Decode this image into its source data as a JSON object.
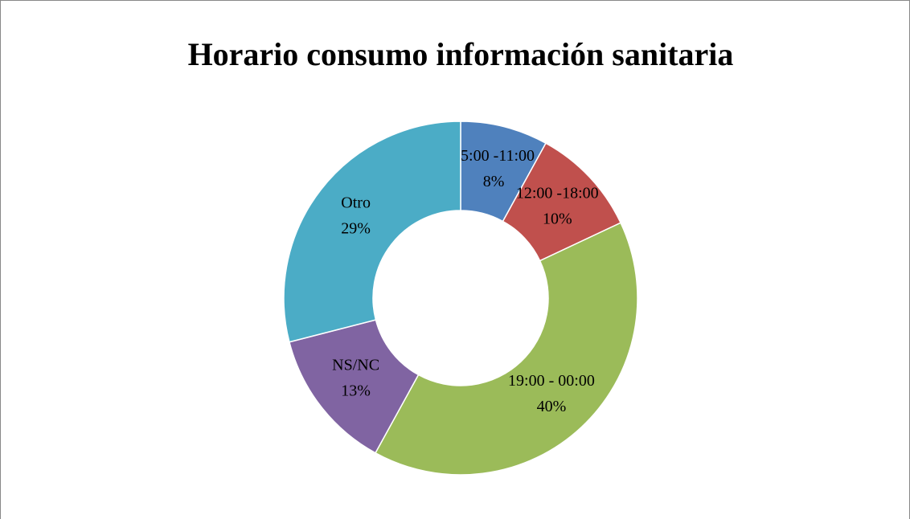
{
  "chart_data": {
    "type": "donut",
    "title": "Horario consumo información sanitaria",
    "categories": [
      "05:00 -11:00",
      "12:00 -18:00",
      "19:00 - 00:00",
      "NS/NC",
      "Otro"
    ],
    "values": [
      8,
      10,
      40,
      13,
      29
    ],
    "value_labels": [
      "8%",
      "10%",
      "40%",
      "13%",
      "29%"
    ],
    "colors": [
      "#4f81bd",
      "#c0504d",
      "#9bbb59",
      "#8064a2",
      "#4bacc6"
    ]
  }
}
